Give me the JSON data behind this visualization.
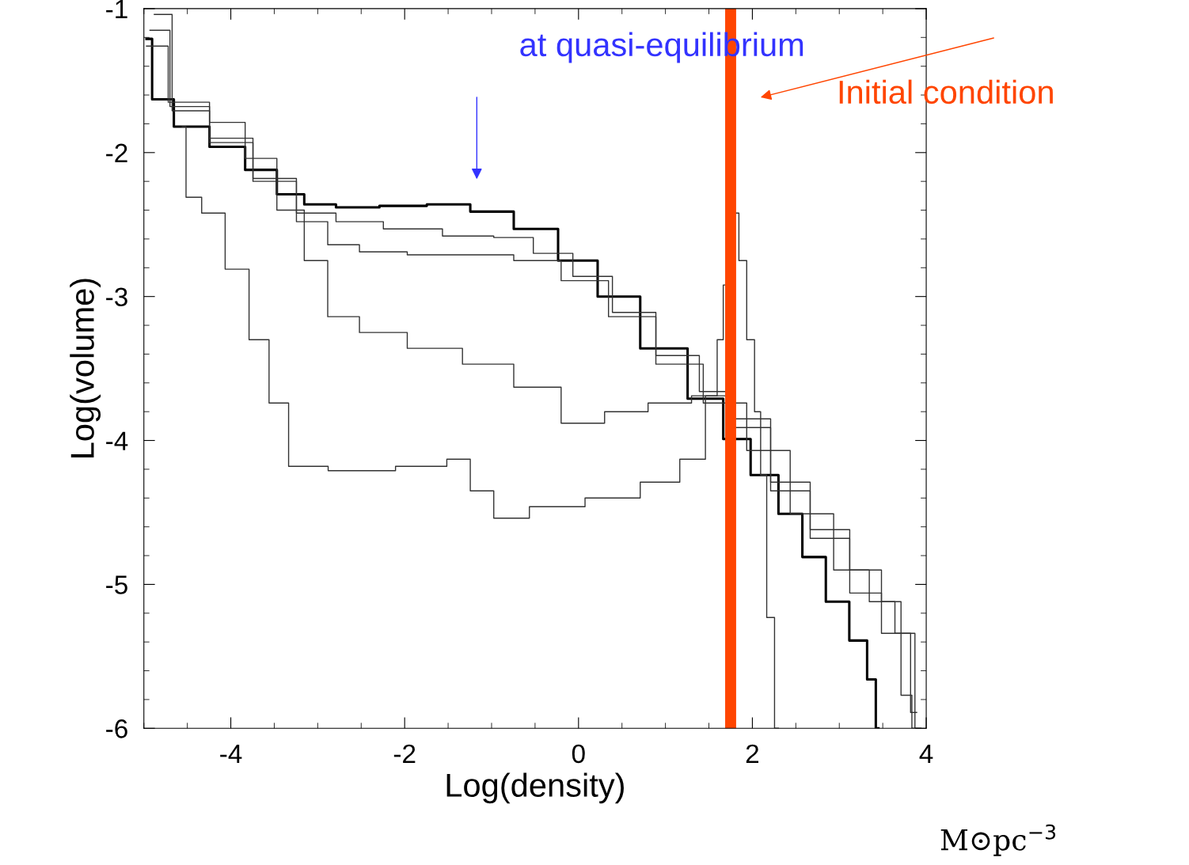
{
  "chart_data": {
    "type": "step",
    "xlabel": "Log(density)",
    "ylabel": "Log(volume)",
    "xlim": [
      -5,
      4
    ],
    "ylim": [
      -6,
      -1
    ],
    "xticks": [
      -4,
      -2,
      0,
      2,
      4
    ],
    "yticks": [
      -6,
      -5,
      -4,
      -3,
      -2,
      -1
    ],
    "grid": false,
    "series": [
      {
        "color": "#000000",
        "x": [
          -4.97,
          -4.84,
          -4.47,
          -4.02,
          -3.65,
          -3.29,
          -3.02,
          -2.56,
          -2.02,
          -1.47,
          -1.02,
          -0.47,
          0,
          0.44,
          0.98,
          1.53,
          1.8,
          2.16,
          2.44,
          2.71,
          2.98,
          3.25,
          3.39,
          3.45
        ],
        "values": [
          -1.21,
          -1.63,
          -1.82,
          -1.96,
          -2.12,
          -2.29,
          -2.36,
          -2.38,
          -2.37,
          -2.36,
          -2.41,
          -2.53,
          -2.75,
          -3.0,
          -3.36,
          -3.71,
          -3.99,
          -4.24,
          -4.51,
          -4.81,
          -5.12,
          -5.39,
          -5.66,
          -6.0
        ]
      },
      {
        "color": "#333333",
        "x": [
          -4.97,
          -4.47,
          -4.02,
          -3.47,
          -3.02,
          -2.56,
          -1.93,
          -1.2,
          -0.75,
          -0.29,
          0.16,
          0.62,
          1.16,
          1.62,
          1.98,
          2.44,
          2.89,
          3.35,
          3.62,
          3.8,
          3.87
        ],
        "values": [
          -1.26,
          -1.65,
          -1.9,
          -2.18,
          -2.42,
          -2.48,
          -2.53,
          -2.58,
          -2.59,
          -2.7,
          -2.86,
          -3.11,
          -3.41,
          -3.66,
          -3.85,
          -4.35,
          -4.68,
          -5.06,
          -5.34,
          -5.77,
          -6.0
        ]
      },
      {
        "color": "#333333",
        "x": [
          -4.93,
          -4.47,
          -4.02,
          -3.47,
          -3.02,
          -2.75,
          -2.29,
          -1.65,
          -1.02,
          -0.47,
          0.07,
          0.62,
          1.16,
          1.71,
          2.16,
          2.71,
          3.16,
          3.53,
          3.75,
          3.89
        ],
        "values": [
          -1.15,
          -1.68,
          -1.93,
          -2.2,
          -2.48,
          -2.64,
          -2.69,
          -2.71,
          -2.71,
          -2.75,
          -2.89,
          -3.14,
          -3.47,
          -3.74,
          -4.07,
          -4.51,
          -4.9,
          -5.12,
          -5.34,
          -5.89
        ]
      },
      {
        "color": "#333333",
        "x": [
          -4.88,
          -4.47,
          -4.02,
          -3.65,
          -3.29,
          -3.02,
          -2.75,
          -2.29,
          -1.65,
          -1.02,
          -0.47,
          0.07,
          0.53,
          1.07,
          1.53,
          1.98,
          2.44,
          2.89,
          3.35,
          3.62,
          3.8,
          3.94
        ],
        "values": [
          -1.04,
          -1.71,
          -1.79,
          -2.04,
          -2.4,
          -2.75,
          -3.14,
          -3.25,
          -3.36,
          -3.47,
          -3.63,
          -3.88,
          -3.8,
          -3.74,
          -3.69,
          -3.91,
          -4.29,
          -4.62,
          -4.9,
          -5.12,
          -5.34,
          -6.0
        ]
      },
      {
        "color": "#333333",
        "x": [
          -4.56,
          -4.47,
          -4.2,
          -3.93,
          -3.65,
          -3.47,
          -3.2,
          -2.56,
          -1.65,
          -1.38,
          -1.11,
          -0.84,
          -0.29,
          0.44,
          0.98,
          1.35,
          1.57,
          1.62,
          1.71,
          1.8,
          1.89,
          1.98,
          2.07,
          2.12,
          2.21,
          2.3
        ],
        "values": [
          -1.82,
          -2.31,
          -2.42,
          -2.81,
          -3.3,
          -3.74,
          -4.18,
          -4.21,
          -4.18,
          -4.13,
          -4.35,
          -4.54,
          -4.46,
          -4.4,
          -4.29,
          -4.13,
          -3.69,
          -3.3,
          -2.92,
          -2.42,
          -2.75,
          -3.3,
          -3.8,
          -4.24,
          -5.23,
          -6.0
        ]
      }
    ],
    "ref_lines": [
      {
        "axis": "x",
        "value": 1.75,
        "label": "Initial condition",
        "color": "#ff4500"
      }
    ],
    "annotations": [
      "at quasi-equilibrium",
      "M⊙pc$^{−3}$"
    ]
  }
}
